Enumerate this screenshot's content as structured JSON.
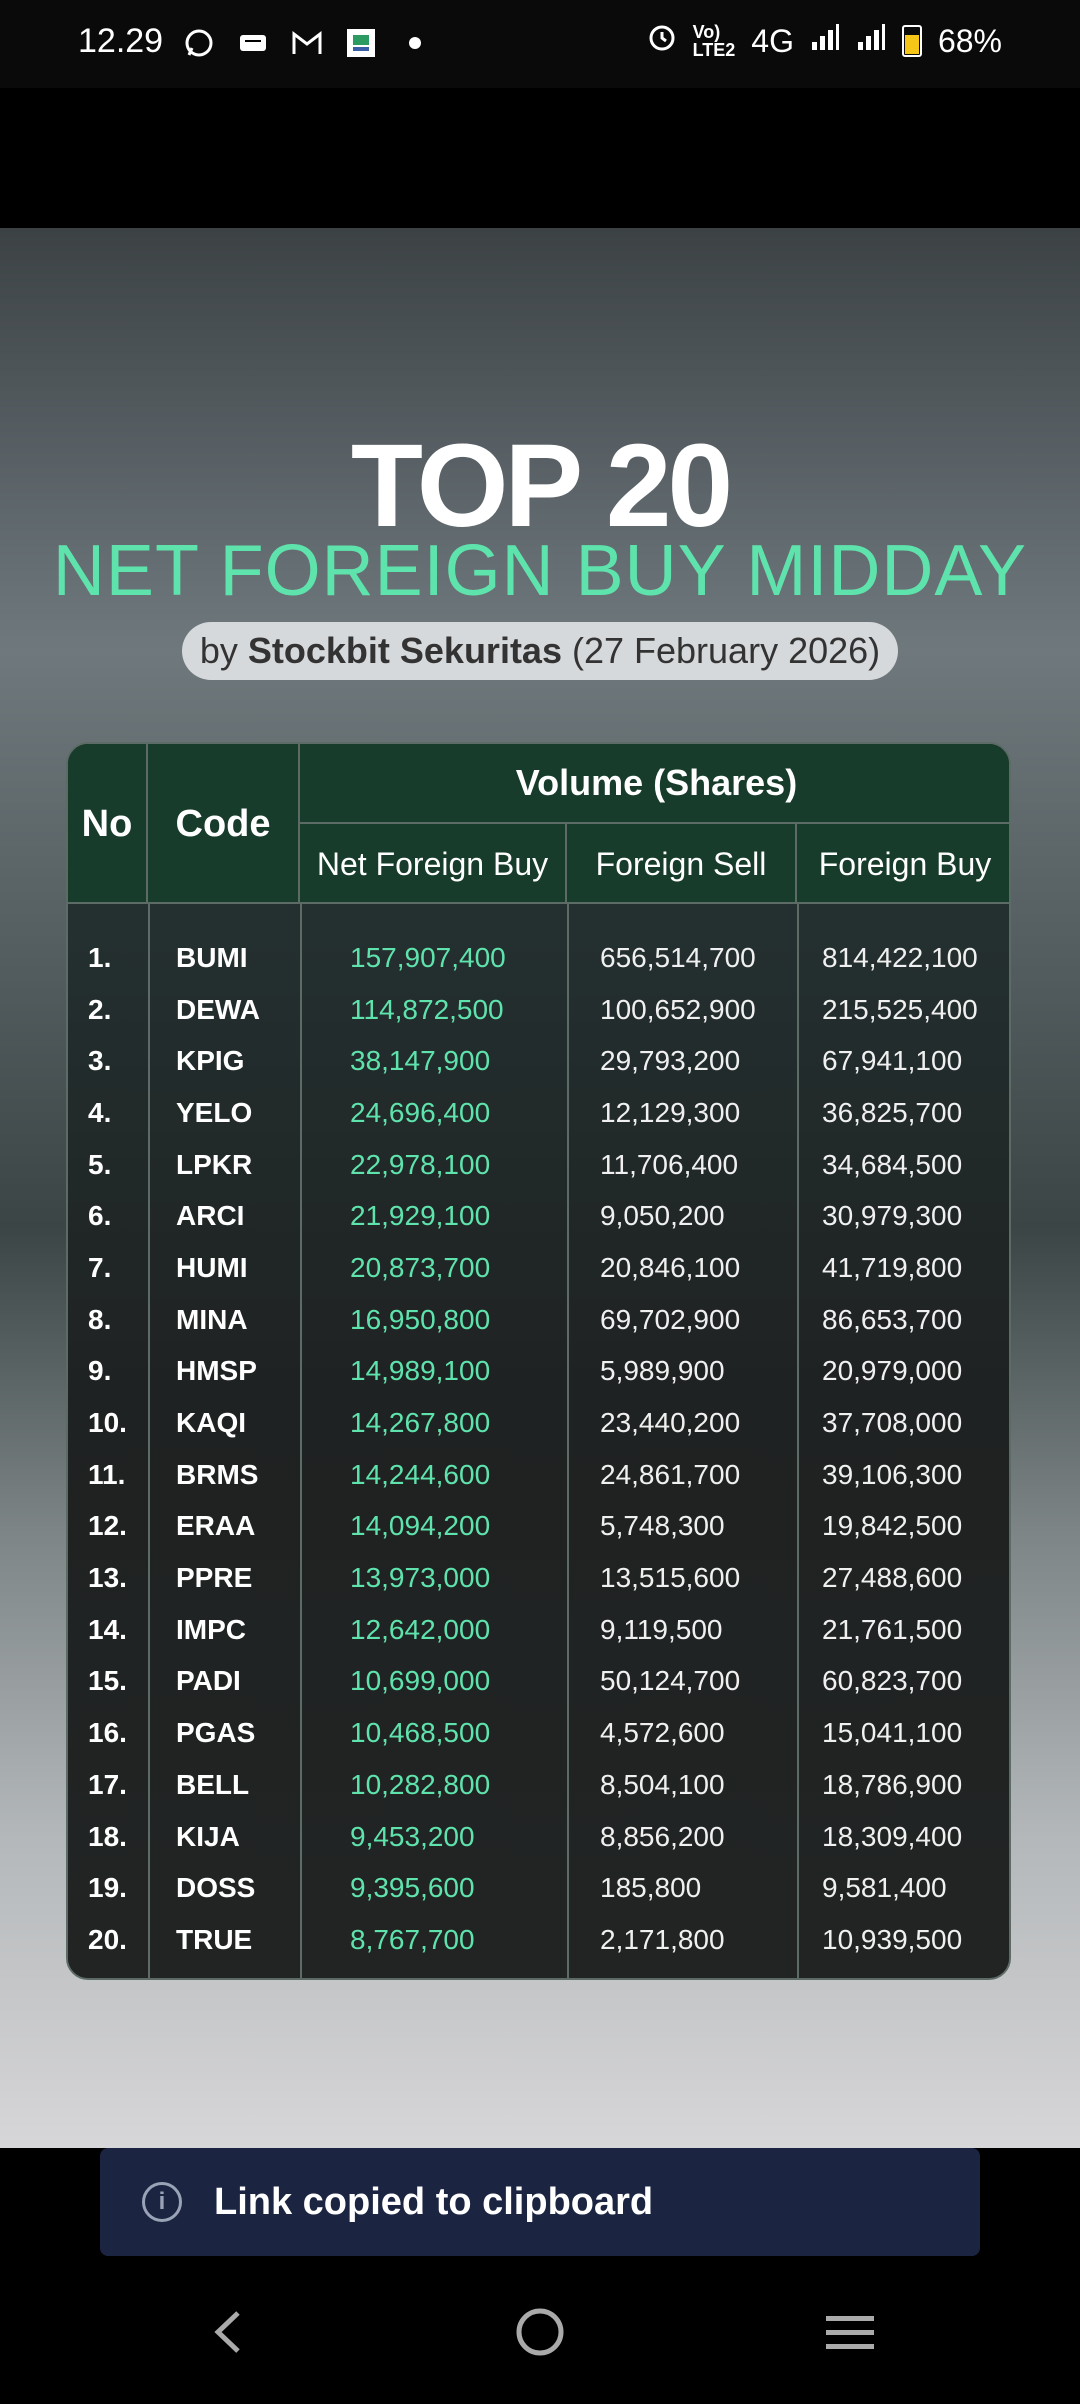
{
  "status_bar": {
    "time": "12.29",
    "battery": "68%",
    "network": "4G",
    "volte": "Vo)\nLTE2",
    "icons": [
      "whatsapp-icon",
      "message-icon",
      "gmail-icon",
      "app-icon",
      "dot-icon",
      "alarm-icon",
      "signal-icon",
      "signal-icon",
      "battery-icon"
    ]
  },
  "poster": {
    "title": "TOP 20",
    "subtitle": "NET FOREIGN BUY MIDDAY",
    "byline_prefix": "by",
    "byline_brand": "Stockbit Sekuritas",
    "byline_date": "(27 February 2026)"
  },
  "table": {
    "headers": {
      "no": "No",
      "code": "Code",
      "volume": "Volume (Shares)",
      "net_foreign_buy": "Net Foreign Buy",
      "foreign_sell": "Foreign Sell",
      "foreign_buy": "Foreign Buy"
    },
    "rows": [
      {
        "no": "1.",
        "code": "BUMI",
        "net": "157,907,400",
        "sell": "656,514,700",
        "buy": "814,422,100"
      },
      {
        "no": "2.",
        "code": "DEWA",
        "net": "114,872,500",
        "sell": "100,652,900",
        "buy": "215,525,400"
      },
      {
        "no": "3.",
        "code": "KPIG",
        "net": "38,147,900",
        "sell": "29,793,200",
        "buy": "67,941,100"
      },
      {
        "no": "4.",
        "code": "YELO",
        "net": "24,696,400",
        "sell": "12,129,300",
        "buy": "36,825,700"
      },
      {
        "no": "5.",
        "code": "LPKR",
        "net": "22,978,100",
        "sell": "11,706,400",
        "buy": "34,684,500"
      },
      {
        "no": "6.",
        "code": "ARCI",
        "net": "21,929,100",
        "sell": "9,050,200",
        "buy": "30,979,300"
      },
      {
        "no": "7.",
        "code": "HUMI",
        "net": "20,873,700",
        "sell": "20,846,100",
        "buy": "41,719,800"
      },
      {
        "no": "8.",
        "code": "MINA",
        "net": "16,950,800",
        "sell": "69,702,900",
        "buy": "86,653,700"
      },
      {
        "no": "9.",
        "code": "HMSP",
        "net": "14,989,100",
        "sell": "5,989,900",
        "buy": "20,979,000"
      },
      {
        "no": "10.",
        "code": "KAQI",
        "net": "14,267,800",
        "sell": "23,440,200",
        "buy": "37,708,000"
      },
      {
        "no": "11.",
        "code": "BRMS",
        "net": "14,244,600",
        "sell": "24,861,700",
        "buy": "39,106,300"
      },
      {
        "no": "12.",
        "code": "ERAA",
        "net": "14,094,200",
        "sell": "5,748,300",
        "buy": "19,842,500"
      },
      {
        "no": "13.",
        "code": "PPRE",
        "net": "13,973,000",
        "sell": "13,515,600",
        "buy": "27,488,600"
      },
      {
        "no": "14.",
        "code": "IMPC",
        "net": "12,642,000",
        "sell": "9,119,500",
        "buy": "21,761,500"
      },
      {
        "no": "15.",
        "code": "PADI",
        "net": "10,699,000",
        "sell": "50,124,700",
        "buy": "60,823,700"
      },
      {
        "no": "16.",
        "code": "PGAS",
        "net": "10,468,500",
        "sell": "4,572,600",
        "buy": "15,041,100"
      },
      {
        "no": "17.",
        "code": "BELL",
        "net": "10,282,800",
        "sell": "8,504,100",
        "buy": "18,786,900"
      },
      {
        "no": "18.",
        "code": "KIJA",
        "net": "9,453,200",
        "sell": "8,856,200",
        "buy": "18,309,400"
      },
      {
        "no": "19.",
        "code": "DOSS",
        "net": "9,395,600",
        "sell": "185,800",
        "buy": "9,581,400"
      },
      {
        "no": "20.",
        "code": "TRUE",
        "net": "8,767,700",
        "sell": "2,171,800",
        "buy": "10,939,500"
      }
    ]
  },
  "toast": {
    "icon": "info-icon",
    "message": "Link copied to clipboard"
  },
  "nav": {
    "buttons": [
      "back-icon",
      "home-icon",
      "recents-icon"
    ]
  },
  "colors": {
    "accent_green": "#5fe3ad",
    "header_green": "#173c2b",
    "toast_bg": "#1b2440"
  }
}
